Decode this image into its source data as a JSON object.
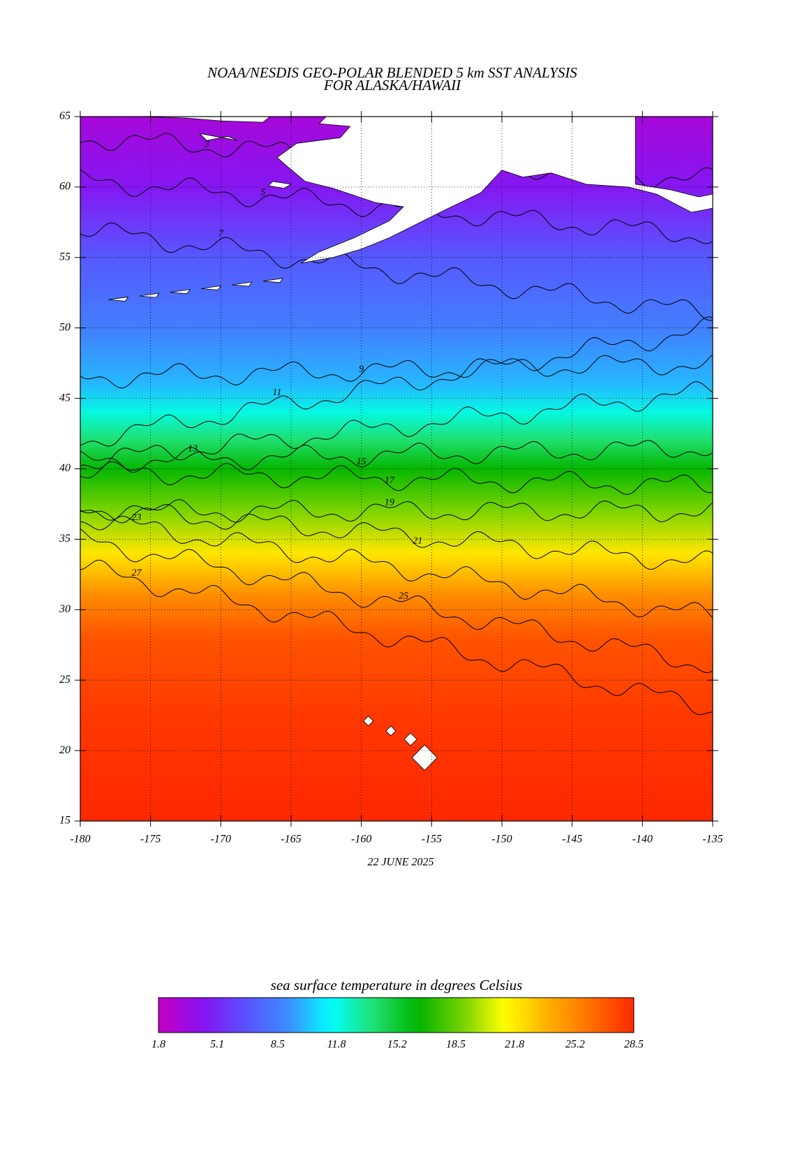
{
  "chart_data": {
    "type": "map",
    "title": [
      "NOAA/NESDIS GEO-POLAR BLENDED 5 km SST ANALYSIS",
      "FOR ALASKA/HAWAII"
    ],
    "xlim": [
      -180,
      -135
    ],
    "xticks": [
      -180,
      -175,
      -170,
      -165,
      -160,
      -155,
      -150,
      -145,
      -140,
      -135
    ],
    "ylim": [
      15,
      65
    ],
    "yticks": [
      15,
      20,
      25,
      30,
      35,
      40,
      45,
      50,
      55,
      60,
      65
    ],
    "grid": true,
    "date": "22 JUNE 2025",
    "contour_levels": [
      3,
      5,
      7,
      9,
      11,
      13,
      15,
      17,
      19,
      21,
      23,
      25,
      27
    ],
    "colorbar": {
      "title": "sea surface temperature in degrees Celsius",
      "ticks": [
        1.8,
        5.1,
        8.5,
        11.8,
        15.2,
        18.5,
        21.8,
        25.2,
        28.5
      ]
    }
  }
}
